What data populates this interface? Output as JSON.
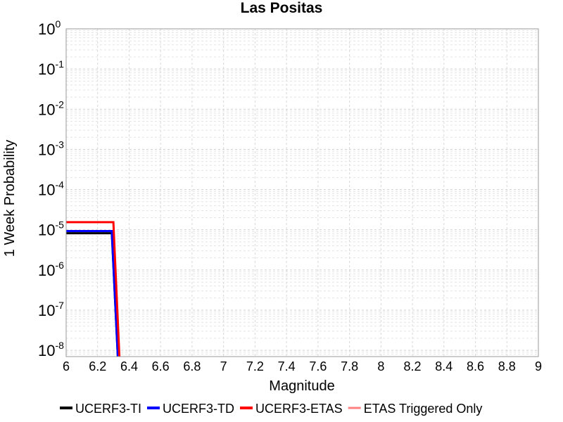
{
  "chart_data": {
    "type": "line",
    "title": "Las Positas",
    "xlabel": "Magnitude",
    "ylabel": "1 Week Probability",
    "xlim": [
      6,
      9
    ],
    "ylim": [
      7e-09,
      1
    ],
    "yscale": "log",
    "grid": true,
    "legend_position": "bottom",
    "x_ticks": [
      "6",
      "6.2",
      "6.4",
      "6.6",
      "6.8",
      "7",
      "7.2",
      "7.4",
      "7.6",
      "7.8",
      "8",
      "8.2",
      "8.4",
      "8.6",
      "8.8",
      "9"
    ],
    "y_ticks": [
      {
        "base": "10",
        "exp": "0"
      },
      {
        "base": "10",
        "exp": "-1"
      },
      {
        "base": "10",
        "exp": "-2"
      },
      {
        "base": "10",
        "exp": "-3"
      },
      {
        "base": "10",
        "exp": "-4"
      },
      {
        "base": "10",
        "exp": "-5"
      },
      {
        "base": "10",
        "exp": "-6"
      },
      {
        "base": "10",
        "exp": "-7"
      },
      {
        "base": "10",
        "exp": "-8"
      }
    ],
    "series": [
      {
        "name": "UCERF3-TI",
        "color": "#000000",
        "width": 3,
        "points": [
          [
            6.0,
            8.2e-06
          ],
          [
            6.29,
            8.2e-06
          ],
          [
            6.29,
            8.2e-06
          ],
          [
            6.33,
            5e-09
          ]
        ]
      },
      {
        "name": "UCERF3-TD",
        "color": "#0000ff",
        "width": 3,
        "points": [
          [
            6.0,
            9.3e-06
          ],
          [
            6.29,
            9.3e-06
          ],
          [
            6.29,
            9.3e-06
          ],
          [
            6.33,
            5e-09
          ]
        ]
      },
      {
        "name": "UCERF3-ETAS",
        "color": "#ff0000",
        "width": 3,
        "points": [
          [
            6.0,
            1.55e-05
          ],
          [
            6.3,
            1.55e-05
          ],
          [
            6.3,
            1.55e-05
          ],
          [
            6.34,
            5e-09
          ]
        ]
      },
      {
        "name": "ETAS Triggered Only",
        "color": "#ff8080",
        "width": 2,
        "points": []
      }
    ]
  }
}
